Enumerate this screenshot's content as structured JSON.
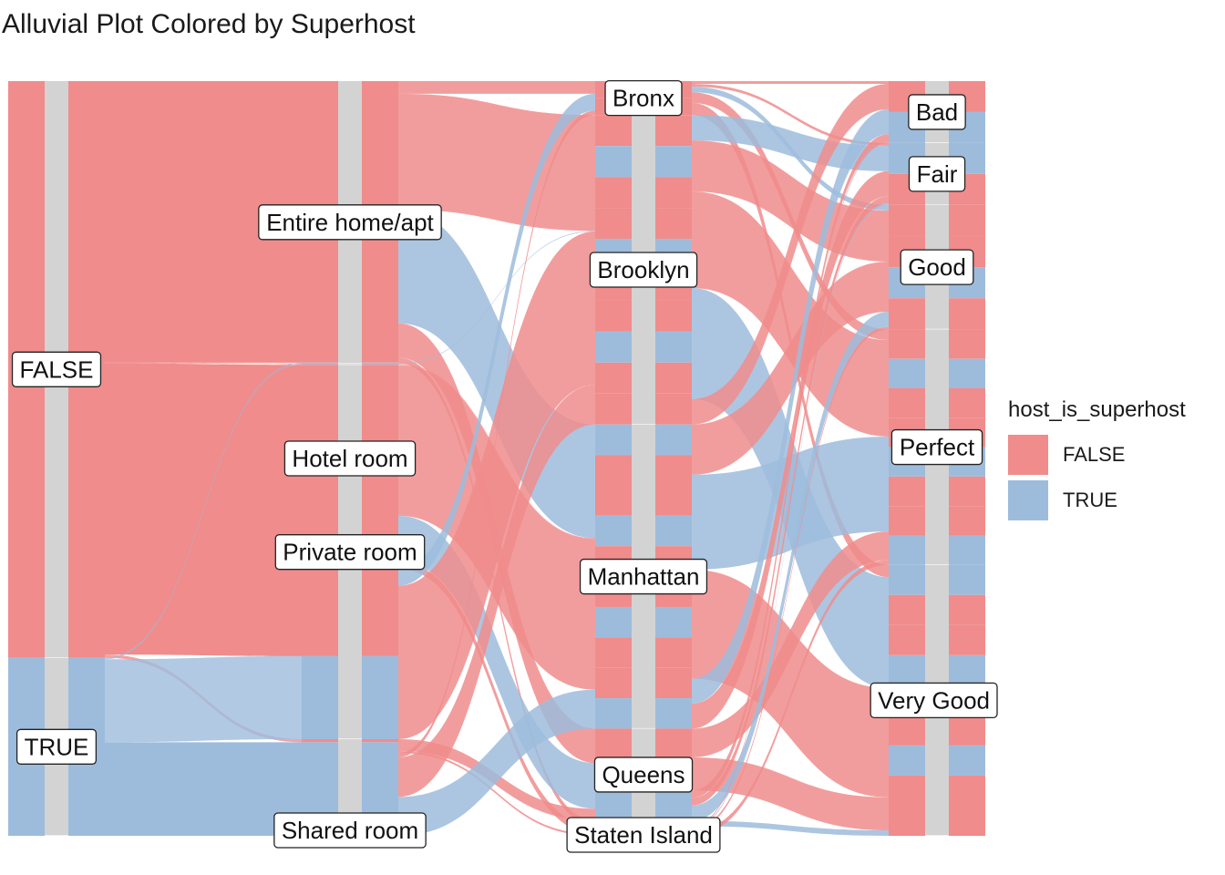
{
  "title": "Alluvial Plot Colored by Superhost",
  "legend": {
    "title": "host_is_superhost",
    "items": [
      {
        "label": "FALSE",
        "color": "#F08C8C"
      },
      {
        "label": "TRUE",
        "color": "#9DBCDC"
      }
    ]
  },
  "chart_data": {
    "type": "alluvial",
    "title": "Alluvial Plot Colored by Superhost",
    "fill_variable": "host_is_superhost",
    "colors": {
      "FALSE": "#F08C8C",
      "TRUE": "#9DBCDC",
      "stratum": "#D3D3D3"
    },
    "axes": [
      {
        "strata": [
          {
            "label": "FALSE",
            "share": 0.764
          },
          {
            "label": "TRUE",
            "share": 0.236
          }
        ]
      },
      {
        "strata": [
          {
            "label": "Entire home/apt",
            "share": 0.374
          },
          {
            "label": "Hotel room",
            "share": 0.002
          },
          {
            "label": "Private room",
            "share": 0.496
          },
          {
            "label": "Shared room",
            "share": 0.128
          }
        ]
      },
      {
        "strata": [
          {
            "label": "Bronx",
            "share": 0.045
          },
          {
            "label": "Brooklyn",
            "share": 0.41
          },
          {
            "label": "Manhattan",
            "share": 0.403
          },
          {
            "label": "Queens",
            "share": 0.122
          },
          {
            "label": "Staten Island",
            "share": 0.02
          }
        ]
      },
      {
        "strata": [
          {
            "label": "Bad",
            "share": 0.082
          },
          {
            "label": "Fair",
            "share": 0.082
          },
          {
            "label": "Good",
            "share": 0.165
          },
          {
            "label": "Perfect",
            "share": 0.312
          },
          {
            "label": "Very Good",
            "share": 0.359
          }
        ]
      }
    ],
    "flows": [
      {
        "from": "FALSE",
        "to": "Entire home/apt",
        "group": "FALSE",
        "share": 0.373
      },
      {
        "from": "FALSE",
        "to": "Hotel room",
        "group": "FALSE",
        "share": 0.001
      },
      {
        "from": "FALSE",
        "to": "Private room",
        "group": "FALSE",
        "share": 0.386
      },
      {
        "from": "FALSE",
        "to": "Shared room",
        "group": "FALSE",
        "share": 0.004
      },
      {
        "from": "TRUE",
        "to": "Entire home/apt",
        "group": "TRUE",
        "share": 0.001
      },
      {
        "from": "TRUE",
        "to": "Hotel room",
        "group": "TRUE",
        "share": 0.001
      },
      {
        "from": "TRUE",
        "to": "Private room",
        "group": "TRUE",
        "share": 0.11
      },
      {
        "from": "TRUE",
        "to": "Shared room",
        "group": "TRUE",
        "share": 0.124
      }
    ],
    "legend_position": "right",
    "grid": false
  }
}
